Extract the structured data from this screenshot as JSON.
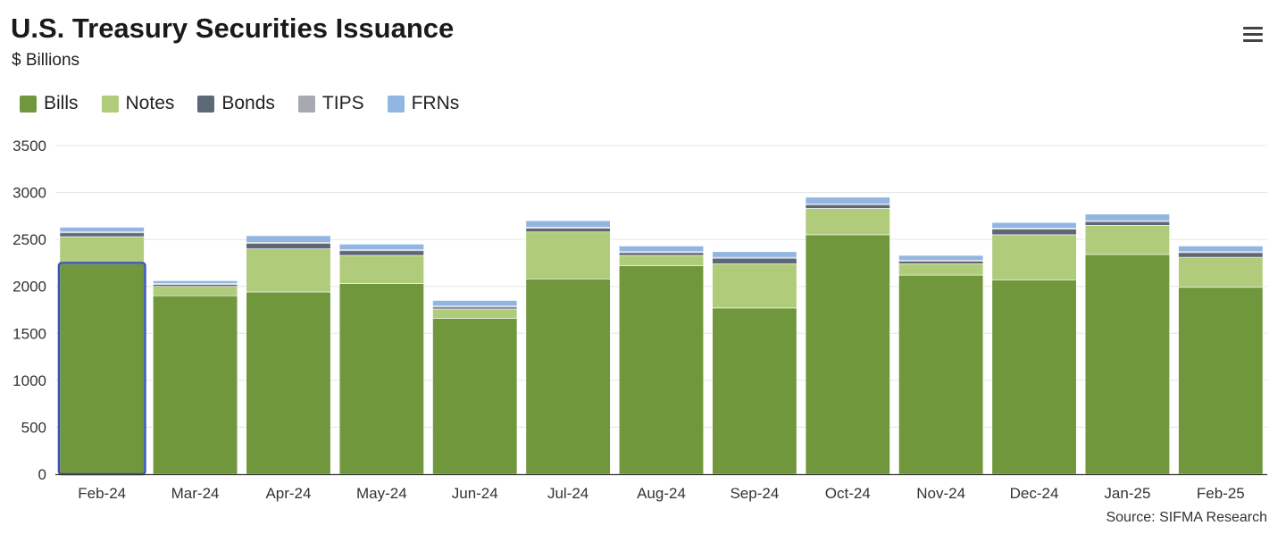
{
  "header": {
    "title": "U.S. Treasury Securities Issuance",
    "subtitle": "$ Billions"
  },
  "source": "Source: SIFMA Research",
  "chart_data": {
    "type": "bar",
    "stacked": true,
    "title": "U.S. Treasury Securities Issuance",
    "subtitle": "$ Billions",
    "categories": [
      "Feb-24",
      "Mar-24",
      "Apr-24",
      "May-24",
      "Jun-24",
      "Jul-24",
      "Aug-24",
      "Sep-24",
      "Oct-24",
      "Nov-24",
      "Dec-24",
      "Jan-25",
      "Feb-25"
    ],
    "series": [
      {
        "name": "Bills",
        "color": "#71973d",
        "values": [
          2240,
          1900,
          1940,
          2030,
          1660,
          2080,
          2220,
          1770,
          2550,
          2120,
          2070,
          2340,
          1990
        ]
      },
      {
        "name": "Notes",
        "color": "#b0cb7a",
        "values": [
          290,
          100,
          460,
          300,
          100,
          500,
          110,
          470,
          280,
          120,
          480,
          310,
          320
        ]
      },
      {
        "name": "Bonds",
        "color": "#5d6776",
        "values": [
          40,
          20,
          60,
          50,
          20,
          40,
          30,
          60,
          40,
          30,
          60,
          40,
          50
        ]
      },
      {
        "name": "TIPS",
        "color": "#a7a9b2",
        "values": [
          10,
          10,
          10,
          10,
          10,
          10,
          10,
          10,
          10,
          10,
          10,
          10,
          10
        ]
      },
      {
        "name": "FRNs",
        "color": "#92b6e2",
        "values": [
          50,
          30,
          70,
          60,
          60,
          70,
          60,
          60,
          70,
          50,
          60,
          70,
          60
        ]
      }
    ],
    "ylim": [
      0,
      3500
    ],
    "yticks": [
      0,
      500,
      1000,
      1500,
      2000,
      2500,
      3000,
      3500
    ],
    "grid": true,
    "legend": "top-left",
    "highlighted_category": "Feb-24"
  }
}
